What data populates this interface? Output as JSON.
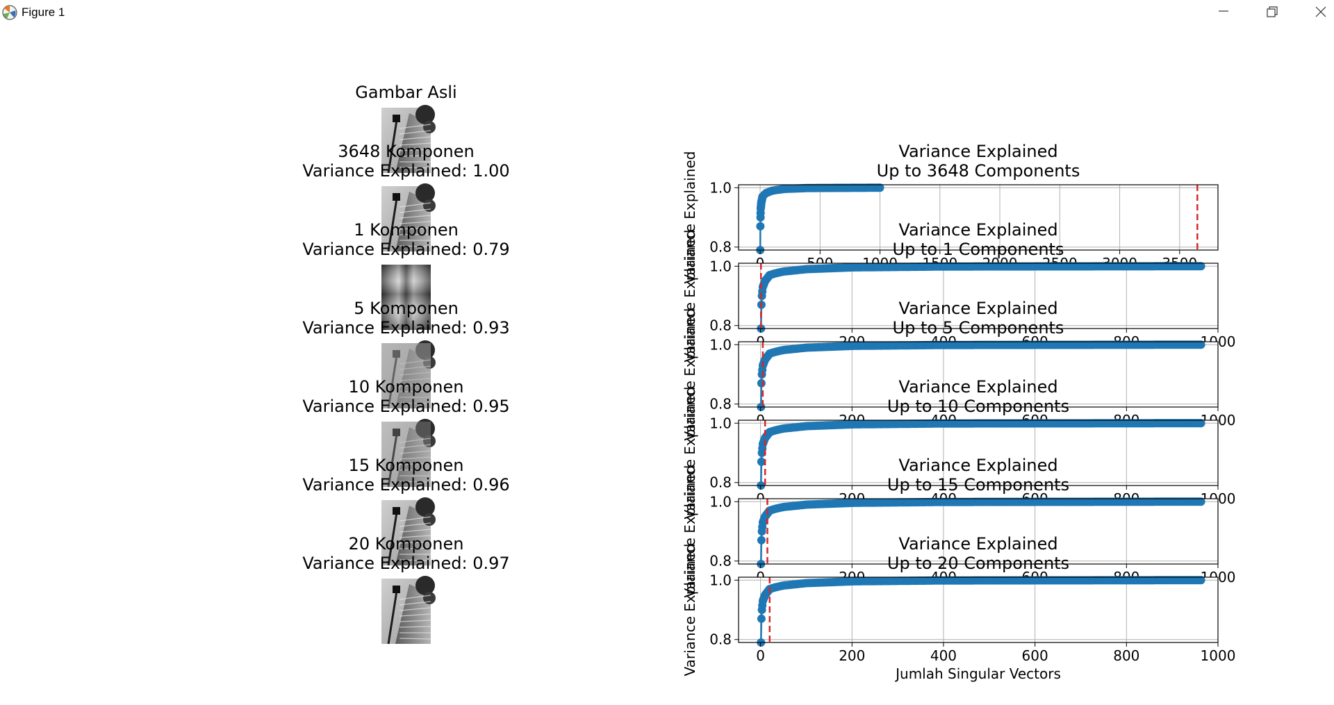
{
  "window": {
    "title": "Figure 1",
    "controls": {
      "minimize": "minimize",
      "maximize": "maximize",
      "close": "close"
    }
  },
  "left_panel": {
    "images": [
      {
        "title": "Gambar Asli",
        "style": "original"
      },
      {
        "title": "3648 Komponen\nVariance Explained: 1.00",
        "style": "original"
      },
      {
        "title": "1 Komponen\nVariance Explained: 0.79",
        "style": "rank1"
      },
      {
        "title": "5 Komponen\nVariance Explained: 0.93",
        "style": "rank5"
      },
      {
        "title": "10 Komponen\nVariance Explained: 0.95",
        "style": "rank10"
      },
      {
        "title": "15 Komponen\nVariance Explained: 0.96",
        "style": "rank15"
      },
      {
        "title": "20 Komponen\nVariance Explained: 0.97",
        "style": "rank20"
      }
    ]
  },
  "colors": {
    "line": "#1f77b4",
    "cutoff": "#d62728",
    "grid": "#b0b0b0"
  },
  "chart_data": [
    {
      "type": "line",
      "title": "Variance Explained\nUp to 3648 Components",
      "ylabel": "Variance Explained",
      "xlabel": "",
      "xlim": [
        -180,
        3820
      ],
      "ylim": [
        0.79,
        1.01
      ],
      "xticks": [
        0,
        500,
        1000,
        1500,
        2000,
        2500,
        3000,
        3500
      ],
      "xticklabels": [
        "0",
        "500",
        "1000",
        "1500",
        "2000",
        "2500",
        "3000",
        "3500"
      ],
      "yticks": [
        0.8,
        1.0
      ],
      "yticklabels": [
        "0.8",
        "1.0"
      ],
      "grid": true,
      "series_end": 1000,
      "cutoff": 3648,
      "curve": {
        "x": [
          1,
          2,
          3,
          5,
          10,
          15,
          20,
          30,
          50,
          100,
          200,
          400,
          1000
        ],
        "y": [
          0.79,
          0.87,
          0.9,
          0.93,
          0.95,
          0.96,
          0.97,
          0.975,
          0.982,
          0.99,
          0.996,
          0.999,
          1.0
        ]
      }
    },
    {
      "type": "line",
      "title": "Variance Explained\nUp to 1 Components",
      "ylabel": "Variance Explained",
      "xlabel": "",
      "xlim": [
        -48,
        1000
      ],
      "ylim": [
        0.79,
        1.01
      ],
      "xticks": [
        0,
        200,
        400,
        600,
        800,
        1000
      ],
      "xticklabels": [
        "0",
        "200",
        "400",
        "600",
        "800",
        "1000"
      ],
      "yticks": [
        0.8,
        1.0
      ],
      "yticklabels": [
        "0.8",
        "1.0"
      ],
      "grid": true,
      "series_end": 963,
      "cutoff": 1,
      "curve": {
        "x": [
          1,
          2,
          3,
          5,
          10,
          15,
          20,
          30,
          50,
          100,
          200,
          400,
          963
        ],
        "y": [
          0.79,
          0.87,
          0.9,
          0.93,
          0.95,
          0.96,
          0.97,
          0.975,
          0.982,
          0.99,
          0.996,
          0.999,
          1.0
        ]
      }
    },
    {
      "type": "line",
      "title": "Variance Explained\nUp to 5 Components",
      "ylabel": "Variance Explained",
      "xlabel": "",
      "xlim": [
        -48,
        1000
      ],
      "ylim": [
        0.79,
        1.01
      ],
      "xticks": [
        0,
        200,
        400,
        600,
        800,
        1000
      ],
      "xticklabels": [
        "0",
        "200",
        "400",
        "600",
        "800",
        "1000"
      ],
      "yticks": [
        0.8,
        1.0
      ],
      "yticklabels": [
        "0.8",
        "1.0"
      ],
      "grid": true,
      "series_end": 963,
      "cutoff": 5,
      "curve": {
        "x": [
          1,
          2,
          3,
          5,
          10,
          15,
          20,
          30,
          50,
          100,
          200,
          400,
          963
        ],
        "y": [
          0.79,
          0.87,
          0.9,
          0.93,
          0.95,
          0.96,
          0.97,
          0.975,
          0.982,
          0.99,
          0.996,
          0.999,
          1.0
        ]
      }
    },
    {
      "type": "line",
      "title": "Variance Explained\nUp to 10 Components",
      "ylabel": "Variance Explained",
      "xlabel": "",
      "xlim": [
        -48,
        1000
      ],
      "ylim": [
        0.79,
        1.01
      ],
      "xticks": [
        0,
        200,
        400,
        600,
        800,
        1000
      ],
      "xticklabels": [
        "0",
        "200",
        "400",
        "600",
        "800",
        "1000"
      ],
      "yticks": [
        0.8,
        1.0
      ],
      "yticklabels": [
        "0.8",
        "1.0"
      ],
      "grid": true,
      "series_end": 963,
      "cutoff": 10,
      "curve": {
        "x": [
          1,
          2,
          3,
          5,
          10,
          15,
          20,
          30,
          50,
          100,
          200,
          400,
          963
        ],
        "y": [
          0.79,
          0.87,
          0.9,
          0.93,
          0.95,
          0.96,
          0.97,
          0.975,
          0.982,
          0.99,
          0.996,
          0.999,
          1.0
        ]
      }
    },
    {
      "type": "line",
      "title": "Variance Explained\nUp to 15 Components",
      "ylabel": "Variance Explained",
      "xlabel": "",
      "xlim": [
        -48,
        1000
      ],
      "ylim": [
        0.79,
        1.01
      ],
      "xticks": [
        0,
        200,
        400,
        600,
        800,
        1000
      ],
      "xticklabels": [
        "0",
        "200",
        "400",
        "600",
        "800",
        "1000"
      ],
      "yticks": [
        0.8,
        1.0
      ],
      "yticklabels": [
        "0.8",
        "1.0"
      ],
      "grid": true,
      "series_end": 963,
      "cutoff": 15,
      "curve": {
        "x": [
          1,
          2,
          3,
          5,
          10,
          15,
          20,
          30,
          50,
          100,
          200,
          400,
          963
        ],
        "y": [
          0.79,
          0.87,
          0.9,
          0.93,
          0.95,
          0.96,
          0.97,
          0.975,
          0.982,
          0.99,
          0.996,
          0.999,
          1.0
        ]
      }
    },
    {
      "type": "line",
      "title": "Variance Explained\nUp to 20 Components",
      "ylabel": "Variance Explained",
      "xlabel": "Jumlah Singular Vectors",
      "xlim": [
        -48,
        1000
      ],
      "ylim": [
        0.79,
        1.01
      ],
      "xticks": [
        0,
        200,
        400,
        600,
        800,
        1000
      ],
      "xticklabels": [
        "0",
        "200",
        "400",
        "600",
        "800",
        "1000"
      ],
      "yticks": [
        0.8,
        1.0
      ],
      "yticklabels": [
        "0.8",
        "1.0"
      ],
      "grid": true,
      "series_end": 963,
      "cutoff": 20,
      "curve": {
        "x": [
          1,
          2,
          3,
          5,
          10,
          15,
          20,
          30,
          50,
          100,
          200,
          400,
          963
        ],
        "y": [
          0.79,
          0.87,
          0.9,
          0.93,
          0.95,
          0.96,
          0.97,
          0.975,
          0.982,
          0.99,
          0.996,
          0.999,
          1.0
        ]
      }
    }
  ]
}
